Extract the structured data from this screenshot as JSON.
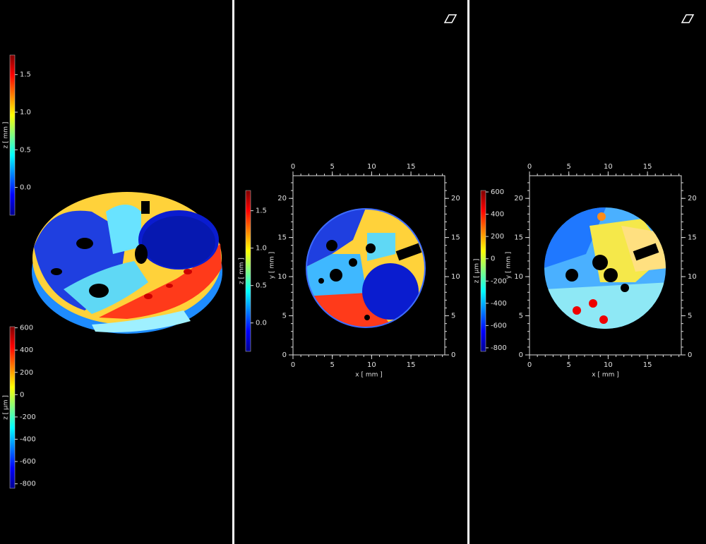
{
  "panels": [
    {
      "colorbars": [
        {
          "label": "z [ mm ]",
          "range": [
            -0.37,
            1.76
          ],
          "ticks": [
            "0.0",
            "0.5",
            "1.0",
            "1.5"
          ]
        },
        {
          "label": "z [ µm ]",
          "range": [
            -840,
            610
          ],
          "ticks": [
            "-800",
            "-600",
            "-400",
            "-200",
            "0",
            "200",
            "400",
            "600"
          ]
        }
      ]
    },
    {
      "colorbar": {
        "label": "z [ mm ]",
        "range": [
          -0.38,
          1.77
        ],
        "ticks": [
          "0.0",
          "0.5",
          "1.0",
          "1.5"
        ]
      },
      "x_axis": {
        "label": "x [ mm ]",
        "range": [
          0,
          19.3
        ],
        "ticks": [
          "0",
          "5",
          "10",
          "15"
        ]
      },
      "y_axis": {
        "label": "y [ mm ]",
        "range": [
          0,
          22.9
        ],
        "ticks": [
          "0",
          "5",
          "10",
          "15",
          "20"
        ]
      }
    },
    {
      "colorbar": {
        "label": "z [ µm ]",
        "range": [
          -832,
          613
        ],
        "ticks": [
          "-800",
          "-600",
          "-400",
          "-200",
          "0",
          "200",
          "400",
          "600"
        ]
      },
      "x_axis": {
        "label": "x [ mm ]",
        "range": [
          0,
          19.3
        ],
        "ticks": [
          "0",
          "5",
          "10",
          "15"
        ]
      },
      "y_axis": {
        "label": "y [ mm ]",
        "range": [
          0,
          22.9
        ],
        "ticks": [
          "0",
          "5",
          "10",
          "15",
          "20"
        ]
      }
    }
  ]
}
